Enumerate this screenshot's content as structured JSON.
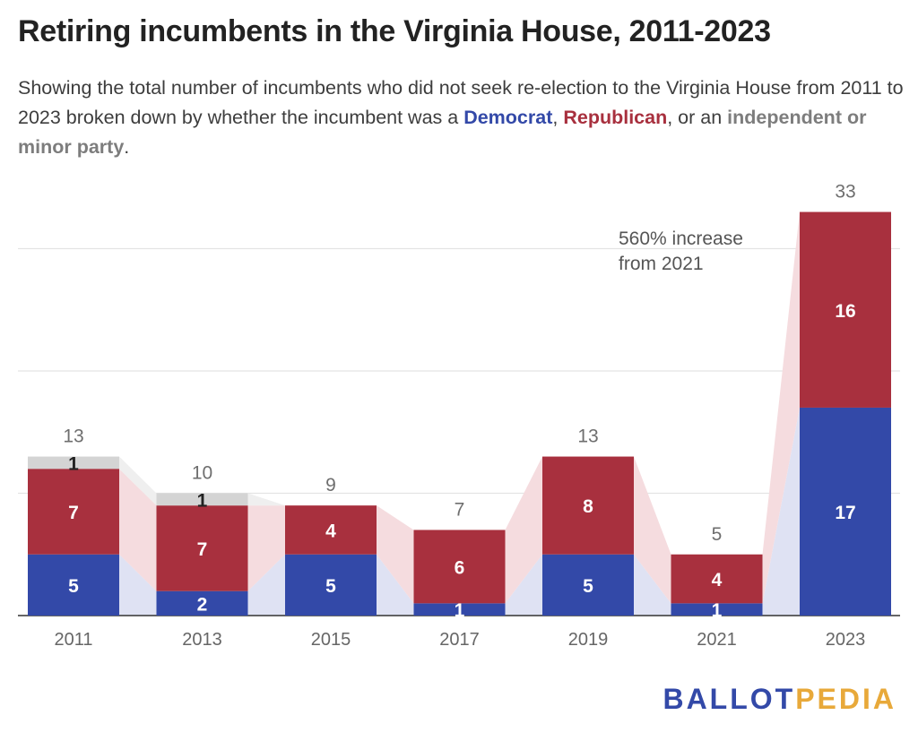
{
  "header": {
    "title": "Retiring incumbents in the Virginia House, 2011-2023",
    "subtitle_lead": "Showing the total number of incumbents who did not seek re-election to the Virginia House from 2011 to 2023 broken down by whether the incumbent was a ",
    "subtitle_dem": "Democrat",
    "subtitle_sep1": ", ",
    "subtitle_rep": "Republican",
    "subtitle_sep2": ", or an ",
    "subtitle_ind": "independent or minor party",
    "subtitle_end": "."
  },
  "logo": {
    "part1": "BALLOT",
    "part2": "PEDIA"
  },
  "colors": {
    "democrat": "#3349a8",
    "republican": "#a8303e",
    "independent": "#d4d4d4",
    "democrat_band": "#dfe2f3",
    "republican_band": "#f5dcdf",
    "independent_band": "#efefef",
    "grid": "#e4e4e4",
    "total_label": "#6e6e6e"
  },
  "chart_data": {
    "type": "bar",
    "stacked": true,
    "categories": [
      "2011",
      "2013",
      "2015",
      "2017",
      "2019",
      "2021",
      "2023"
    ],
    "series": [
      {
        "name": "Democrat",
        "values": [
          5,
          2,
          5,
          1,
          5,
          1,
          17
        ]
      },
      {
        "name": "Republican",
        "values": [
          7,
          7,
          4,
          6,
          8,
          4,
          16
        ]
      },
      {
        "name": "independent or minor party",
        "values": [
          1,
          1,
          0,
          0,
          0,
          0,
          0
        ]
      }
    ],
    "totals": [
      13,
      10,
      9,
      7,
      13,
      5,
      33
    ],
    "ylim": [
      0,
      35
    ],
    "grid": true,
    "gridlines": [
      10,
      20,
      30
    ],
    "annotation": {
      "text_line1": "560% increase",
      "text_line2": "from 2021",
      "category": "2023"
    }
  }
}
